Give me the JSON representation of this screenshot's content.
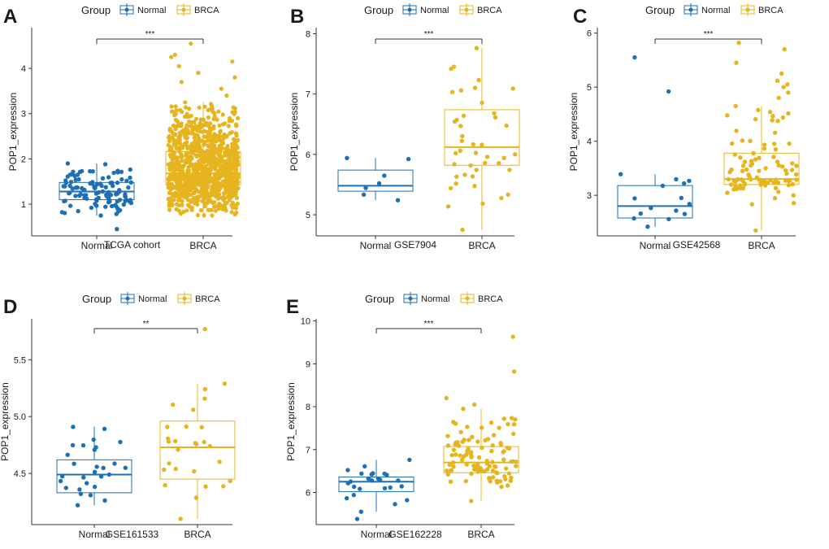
{
  "colors": {
    "normal": "#1f6fb4",
    "brca": "#e6b41e",
    "axis": "#333333"
  },
  "legend": {
    "title": "Group",
    "labels": [
      "Normal",
      "BRCA"
    ]
  },
  "chart_data": [
    {
      "type": "boxplot",
      "panel_label": "A",
      "title": "",
      "xlabel": "TCGA cohort",
      "ylabel": "POP1_expression",
      "categories": [
        "Normal",
        "BRCA"
      ],
      "ylim": [
        0.3,
        4.9
      ],
      "yticks": [
        1,
        2,
        3,
        4
      ],
      "yticklabels": [
        "1",
        "2",
        "3",
        "4"
      ],
      "significance": "***",
      "groups": [
        {
          "name": "Normal",
          "n": 113,
          "median": 1.28,
          "q1": 1.1,
          "q3": 1.48,
          "whisker_low": 0.75,
          "whisker_high": 1.9,
          "outliers": [
            0.45
          ]
        },
        {
          "name": "BRCA",
          "n": 1100,
          "median": 1.68,
          "q1": 1.42,
          "q3": 2.16,
          "whisker_low": 0.75,
          "whisker_high": 3.25,
          "outliers": [
            3.4,
            3.55,
            3.7,
            3.8,
            3.9,
            4.05,
            4.15,
            4.25,
            4.3,
            4.55
          ]
        }
      ]
    },
    {
      "type": "boxplot",
      "panel_label": "B",
      "title": "",
      "xlabel": "GSE7904",
      "ylabel": "POP1_expression",
      "categories": [
        "Normal",
        "BRCA"
      ],
      "ylim": [
        4.65,
        8.1
      ],
      "yticks": [
        5,
        6,
        7,
        8
      ],
      "yticklabels": [
        "5",
        "6",
        "7",
        "8"
      ],
      "significance": "***",
      "groups": [
        {
          "name": "Normal",
          "n": 7,
          "median": 5.48,
          "q1": 5.39,
          "q3": 5.74,
          "whisker_low": 5.24,
          "whisker_high": 5.94,
          "outliers": []
        },
        {
          "name": "BRCA",
          "n": 43,
          "median": 6.12,
          "q1": 5.82,
          "q3": 6.74,
          "whisker_low": 4.75,
          "whisker_high": 7.76,
          "outliers": []
        }
      ]
    },
    {
      "type": "boxplot",
      "panel_label": "C",
      "title": "",
      "xlabel": "GSE42568",
      "ylabel": "POP1_expression",
      "categories": [
        "Normal",
        "BRCA"
      ],
      "ylim": [
        2.25,
        6.1
      ],
      "yticks": [
        3,
        4,
        5,
        6
      ],
      "yticklabels": [
        "3",
        "4",
        "5",
        "6"
      ],
      "significance": "***",
      "groups": [
        {
          "name": "Normal",
          "n": 17,
          "median": 2.8,
          "q1": 2.58,
          "q3": 3.18,
          "whisker_low": 2.42,
          "whisker_high": 3.39,
          "outliers": [
            4.92,
            5.55
          ]
        },
        {
          "name": "BRCA",
          "n": 104,
          "median": 3.3,
          "q1": 3.2,
          "q3": 3.78,
          "whisker_low": 2.35,
          "whisker_high": 4.65,
          "outliers": [
            4.8,
            4.9,
            5.0,
            5.05,
            5.12,
            5.25,
            5.45,
            5.7,
            5.82
          ]
        }
      ]
    },
    {
      "type": "boxplot",
      "panel_label": "D",
      "title": "",
      "xlabel": "GSE161533",
      "ylabel": "POP1_expression",
      "categories": [
        "Normal",
        "BRCA"
      ],
      "ylim": [
        4.05,
        5.86
      ],
      "yticks": [
        4.5,
        5.0,
        5.5
      ],
      "yticklabels": [
        "4.5",
        "5.0",
        "5.5"
      ],
      "significance": "**",
      "groups": [
        {
          "name": "Normal",
          "n": 28,
          "median": 4.49,
          "q1": 4.33,
          "q3": 4.62,
          "whisker_low": 4.22,
          "whisker_high": 4.91,
          "outliers": []
        },
        {
          "name": "BRCA",
          "n": 28,
          "median": 4.73,
          "q1": 4.45,
          "q3": 4.96,
          "whisker_low": 4.1,
          "whisker_high": 5.29,
          "outliers": [
            5.77
          ]
        }
      ]
    },
    {
      "type": "boxplot",
      "panel_label": "E",
      "title": "",
      "xlabel": "GSE162228",
      "ylabel": "POP1_expression",
      "categories": [
        "Normal",
        "BRCA"
      ],
      "ylim": [
        5.25,
        10.05
      ],
      "yticks": [
        6,
        7,
        8,
        9,
        10
      ],
      "yticklabels": [
        "6",
        "7",
        "8",
        "9",
        "10"
      ],
      "significance": "***",
      "groups": [
        {
          "name": "Normal",
          "n": 27,
          "median": 6.25,
          "q1": 6.02,
          "q3": 6.36,
          "whisker_low": 5.55,
          "whisker_high": 6.76,
          "outliers": [
            5.38
          ]
        },
        {
          "name": "BRCA",
          "n": 109,
          "median": 6.7,
          "q1": 6.46,
          "q3": 7.07,
          "whisker_low": 5.8,
          "whisker_high": 7.95,
          "outliers": [
            8.05,
            8.2,
            8.82,
            9.63
          ]
        }
      ]
    }
  ]
}
